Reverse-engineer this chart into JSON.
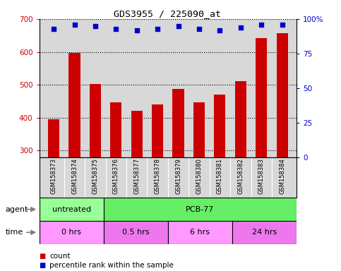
{
  "title": "GDS3955 / 225090_at",
  "samples": [
    "GSM158373",
    "GSM158374",
    "GSM158375",
    "GSM158376",
    "GSM158377",
    "GSM158378",
    "GSM158379",
    "GSM158380",
    "GSM158381",
    "GSM158382",
    "GSM158383",
    "GSM158384"
  ],
  "counts": [
    395,
    597,
    503,
    447,
    422,
    441,
    487,
    447,
    470,
    512,
    641,
    657
  ],
  "percentile_ranks": [
    93,
    96,
    95,
    93,
    92,
    93,
    95,
    93,
    92,
    94,
    96,
    96
  ],
  "ylim_left": [
    280,
    700
  ],
  "ylim_right": [
    0,
    100
  ],
  "yticks_left": [
    300,
    400,
    500,
    600,
    700
  ],
  "yticks_right": [
    0,
    25,
    50,
    75,
    100
  ],
  "bar_color": "#cc0000",
  "dot_color": "#0000cc",
  "grid_color": "#000000",
  "agent_groups": [
    {
      "label": "untreated",
      "start": 0,
      "end": 3,
      "color": "#99ff99"
    },
    {
      "label": "PCB-77",
      "start": 3,
      "end": 12,
      "color": "#66ee66"
    }
  ],
  "time_groups": [
    {
      "label": "0 hrs",
      "start": 0,
      "end": 3,
      "color": "#ff99ff"
    },
    {
      "label": "0.5 hrs",
      "start": 3,
      "end": 6,
      "color": "#ee77ee"
    },
    {
      "label": "6 hrs",
      "start": 6,
      "end": 9,
      "color": "#ff99ff"
    },
    {
      "label": "24 hrs",
      "start": 9,
      "end": 12,
      "color": "#ee77ee"
    }
  ],
  "bg_chart": "#d8d8d8",
  "bg_figure": "#ffffff",
  "label_agent": "agent",
  "label_time": "time",
  "legend_count": "count",
  "legend_pct": "percentile rank within the sample",
  "n_samples": 12
}
